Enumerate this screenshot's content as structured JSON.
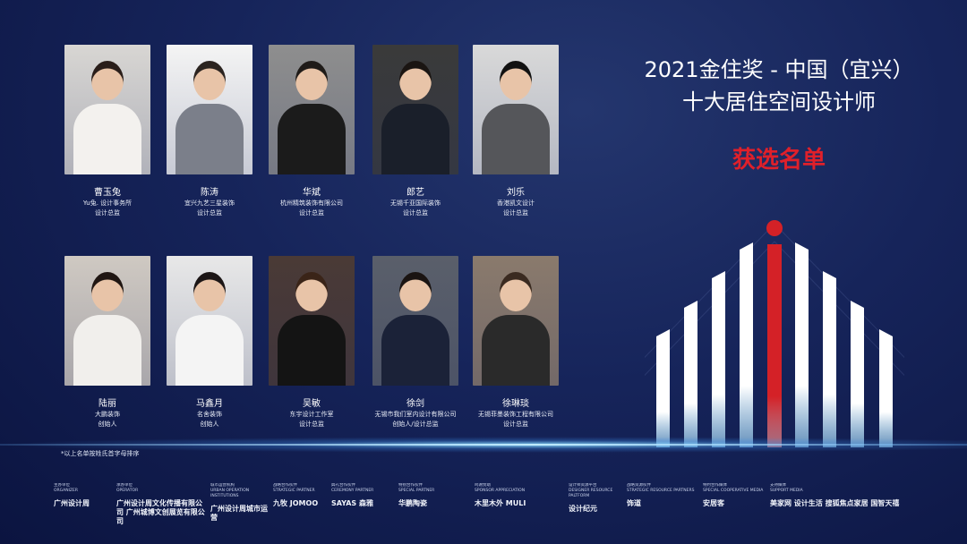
{
  "header": {
    "title_line1": "2021金住奖 - 中国（宜兴）",
    "title_line2": "十大居住空间设计师",
    "subtitle": "获选名单"
  },
  "colors": {
    "background": "#16245a",
    "accent_red": "#e0202a"
  },
  "designers": [
    {
      "name": "曹玉兔",
      "company": "Yu兔. 设计事务所",
      "role": "设计总监"
    },
    {
      "name": "陈涛",
      "company": "宜兴九艺三星装饰",
      "role": "设计总监"
    },
    {
      "name": "华斌",
      "company": "杭州精筑装饰有限公司",
      "role": "设计总监"
    },
    {
      "name": "郎艺",
      "company": "无锡千亚国际装饰",
      "role": "设计总监"
    },
    {
      "name": "刘乐",
      "company": "香港凯文设计",
      "role": "设计总监"
    },
    {
      "name": "陆丽",
      "company": "大鹏装饰",
      "role": "创始人"
    },
    {
      "name": "马鑫月",
      "company": "名舍装饰",
      "role": "创始人"
    },
    {
      "name": "吴敏",
      "company": "东宇设计工作室",
      "role": "设计总监"
    },
    {
      "name": "徐剑",
      "company": "无锡市我们室内设计有限公司",
      "role": "创始人/设计总监"
    },
    {
      "name": "徐琳琰",
      "company": "无锡菲墨装饰工程有限公司",
      "role": "设计总监"
    }
  ],
  "footnote": "*以上名单按姓氏首字母排序",
  "sponsors": [
    {
      "label_cn": "主办单位",
      "label_en": "ORGANIZER",
      "logo": "广州设计周"
    },
    {
      "label_cn": "承办单位",
      "label_en": "OPERATOR",
      "logo": "广州设计周文化传播有限公司  广州城博文创展览有限公司"
    },
    {
      "label_cn": "城市运营机构",
      "label_en": "URBAN OPERATION INSTITUTIONS",
      "logo": "广州设计周城市运营"
    },
    {
      "label_cn": "战略合作伙伴",
      "label_en": "STRATEGIC PARTNER",
      "logo": "九牧 JOMOO"
    },
    {
      "label_cn": "典礼合作伙伴",
      "label_en": "CEREMONY PARTNER",
      "logo": "SAYAS 森雅"
    },
    {
      "label_cn": "特别合作伙伴",
      "label_en": "SPECIAL PARTNER",
      "logo": "华鹏陶瓷"
    },
    {
      "label_cn": "鸣谢赞助",
      "label_en": "SPONSOR APPRECIATION",
      "logo": "木里木外 MULI"
    },
    {
      "label_cn": "设计师资源平台",
      "label_en": "DESIGNER RESOURCE PALTFORM",
      "logo": "设计纪元"
    },
    {
      "label_cn": "战略资源伙伴",
      "label_en": "STRATEGIC RESOURCE PARTNERS",
      "logo": "饰道"
    },
    {
      "label_cn": "特约合作媒体",
      "label_en": "SPECIAL COOPERATIVE MEDIA",
      "logo": "安居客"
    },
    {
      "label_cn": "支持媒体",
      "label_en": "SUPPORT MEDIA",
      "logo": "美家网  设计生活  搜狐焦点家居  国智天禧"
    }
  ]
}
